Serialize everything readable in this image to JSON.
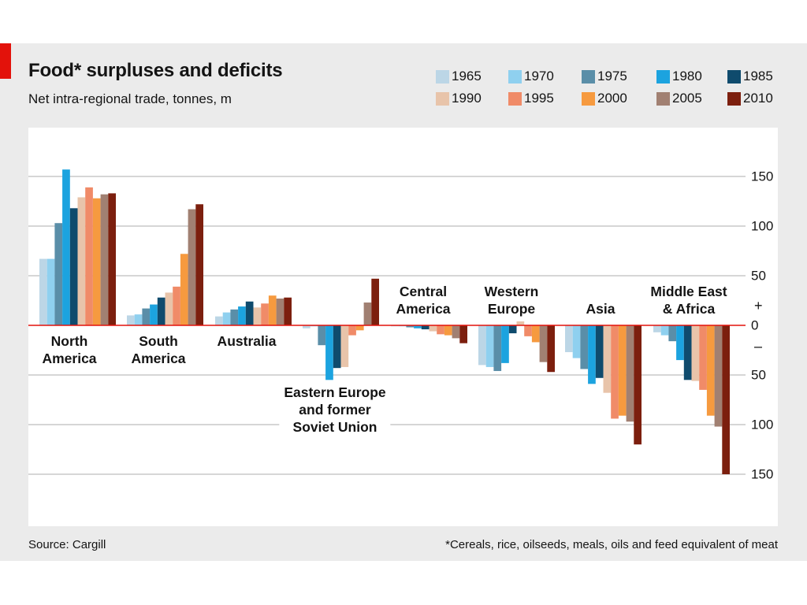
{
  "chart_data": {
    "type": "bar",
    "title": "Food* surpluses and deficits",
    "subtitle": "Net intra-regional trade, tonnes, m",
    "categories": [
      [
        "North",
        "America"
      ],
      [
        "South",
        "America"
      ],
      [
        "Australia"
      ],
      [
        "Eastern Europe",
        "and former",
        "Soviet Union"
      ],
      [
        "Central",
        "America"
      ],
      [
        "Western",
        "Europe"
      ],
      [
        "Asia"
      ],
      [
        "Middle East",
        "& Africa"
      ]
    ],
    "series": [
      {
        "name": "1965",
        "color": "#bcd6e6",
        "values": [
          67,
          10,
          9,
          -3,
          -1,
          -40,
          -27,
          -7
        ]
      },
      {
        "name": "1970",
        "color": "#8fd0ef",
        "values": [
          67,
          11,
          13,
          -1,
          -1,
          -42,
          -33,
          -10
        ]
      },
      {
        "name": "1975",
        "color": "#5a8ea8",
        "values": [
          103,
          17,
          16,
          -20,
          -2,
          -46,
          -44,
          -16
        ]
      },
      {
        "name": "1980",
        "color": "#1ca3df",
        "values": [
          157,
          21,
          19,
          -55,
          -3,
          -38,
          -59,
          -35
        ]
      },
      {
        "name": "1985",
        "color": "#0f4b6d",
        "values": [
          118,
          28,
          24,
          -43,
          -4,
          -8,
          -53,
          -55
        ]
      },
      {
        "name": "1990",
        "color": "#e8c4aa",
        "values": [
          129,
          33,
          18,
          -42,
          -6,
          4,
          -68,
          -56
        ]
      },
      {
        "name": "1995",
        "color": "#f08b68",
        "values": [
          139,
          39,
          22,
          -10,
          -9,
          -11,
          -94,
          -65
        ]
      },
      {
        "name": "2000",
        "color": "#f69a3f",
        "values": [
          128,
          72,
          30,
          -5,
          -10,
          -17,
          -91,
          -91
        ]
      },
      {
        "name": "2005",
        "color": "#a18072",
        "values": [
          132,
          117,
          27,
          23,
          -13,
          -37,
          -97,
          -102
        ]
      },
      {
        "name": "2010",
        "color": "#7c1f0e",
        "values": [
          133,
          122,
          28,
          47,
          -18,
          -47,
          -120,
          -150
        ]
      }
    ],
    "ylim": [
      -200,
      200
    ],
    "y_ticks": [
      150,
      100,
      50,
      0,
      -50,
      -100,
      -150
    ],
    "y_tick_labels": [
      "150",
      "100",
      "50",
      "0",
      "50",
      "100",
      "150"
    ],
    "sign_labels": [
      "+",
      "–"
    ],
    "grid": true,
    "legend": "top-right",
    "zero_line_color": "#e3120b",
    "gridline_color": "#c8c8c8"
  },
  "footer": {
    "source": "Source: Cargill",
    "footnote": "*Cereals, rice, oilseeds, meals, oils and feed equivalent of meat"
  },
  "accent_color": "#e3120b",
  "panel_color": "#ebebeb"
}
